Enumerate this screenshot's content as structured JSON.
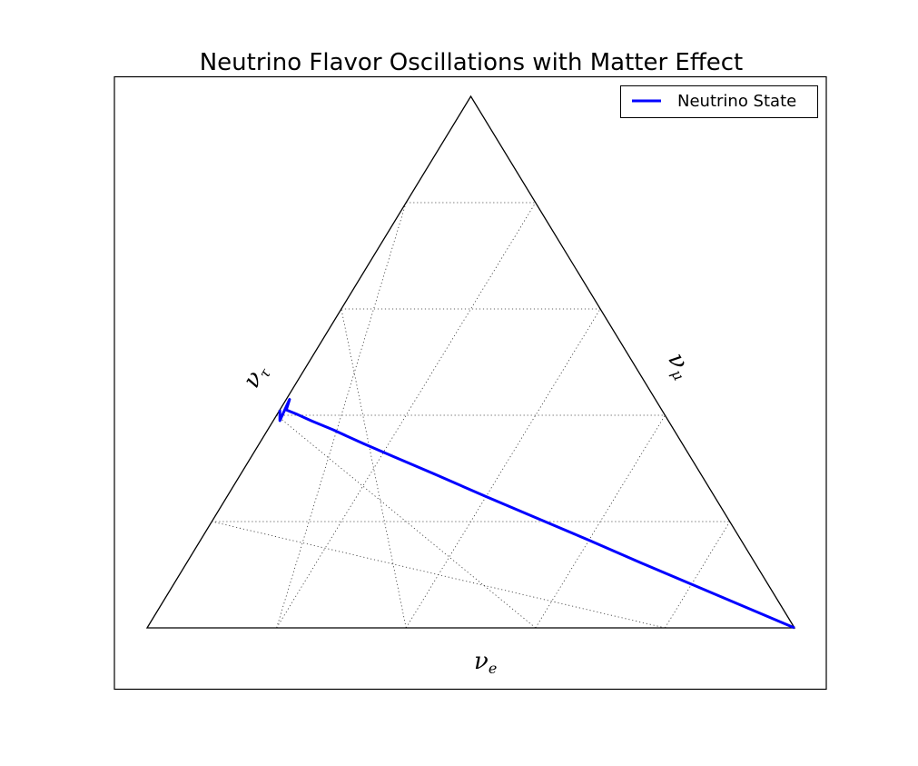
{
  "chart_data": {
    "type": "line",
    "subtype": "ternary",
    "title": "Neutrino Flavor Oscillations with Matter Effect",
    "axes": {
      "bottom": {
        "symbol": "ν",
        "subscript": "e"
      },
      "left": {
        "symbol": "ν",
        "subscript": "τ"
      },
      "right": {
        "symbol": "ν",
        "subscript": "μ"
      }
    },
    "grid": true,
    "grid_step": 0.2,
    "legend": {
      "position": "top-right",
      "entries": [
        "Neutrino State"
      ]
    },
    "series": [
      {
        "name": "Neutrino State",
        "color": "#0000ff",
        "x": [
          1.0,
          0.9,
          0.8,
          0.7,
          0.6,
          0.5,
          0.4,
          0.3,
          0.22,
          0.16,
          0.1,
          0.06,
          0.03,
          0.01,
          0.005,
          0.01,
          0.0
        ],
        "y": [
          0.0,
          0.041,
          0.082,
          0.123,
          0.165,
          0.206,
          0.247,
          0.289,
          0.322,
          0.347,
          0.373,
          0.389,
          0.402,
          0.41,
          0.43,
          0.39,
          0.41
        ]
      }
    ]
  }
}
